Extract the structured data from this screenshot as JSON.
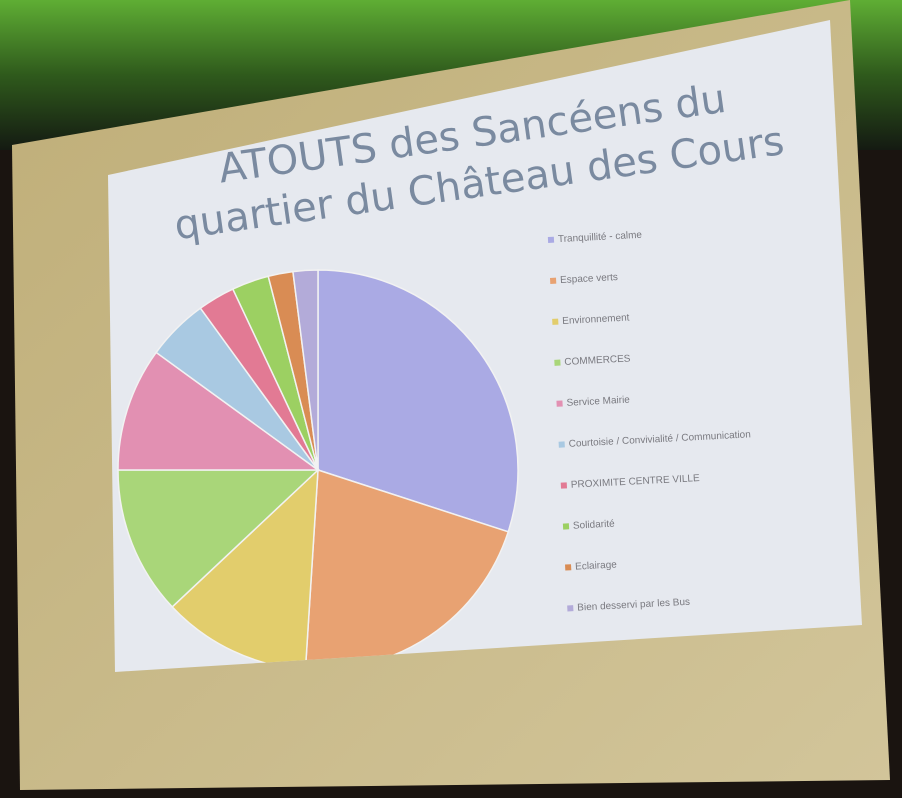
{
  "chart_data": {
    "type": "pie",
    "title": "ATOUTS des Sancéens du quartier du Château des Cours",
    "categories": [
      "Tranquillité - calme",
      "Espace verts",
      "Environnement",
      "COMMERCES",
      "Service Mairie",
      "Courtoisie / Convivialité / Communication",
      "PROXIMITE CENTRE VILLE",
      "Solidarité",
      "Eclairage",
      "Bien desservi par les Bus"
    ],
    "values": [
      30,
      21,
      12,
      12,
      10,
      5,
      3,
      3,
      2,
      2
    ],
    "colors": [
      "#aaaae4",
      "#e8a272",
      "#e2cd6c",
      "#a9d679",
      "#e290b2",
      "#a9c9e2",
      "#e27a94",
      "#9cd062",
      "#d98c54",
      "#b3abd9"
    ],
    "legend": "right"
  }
}
